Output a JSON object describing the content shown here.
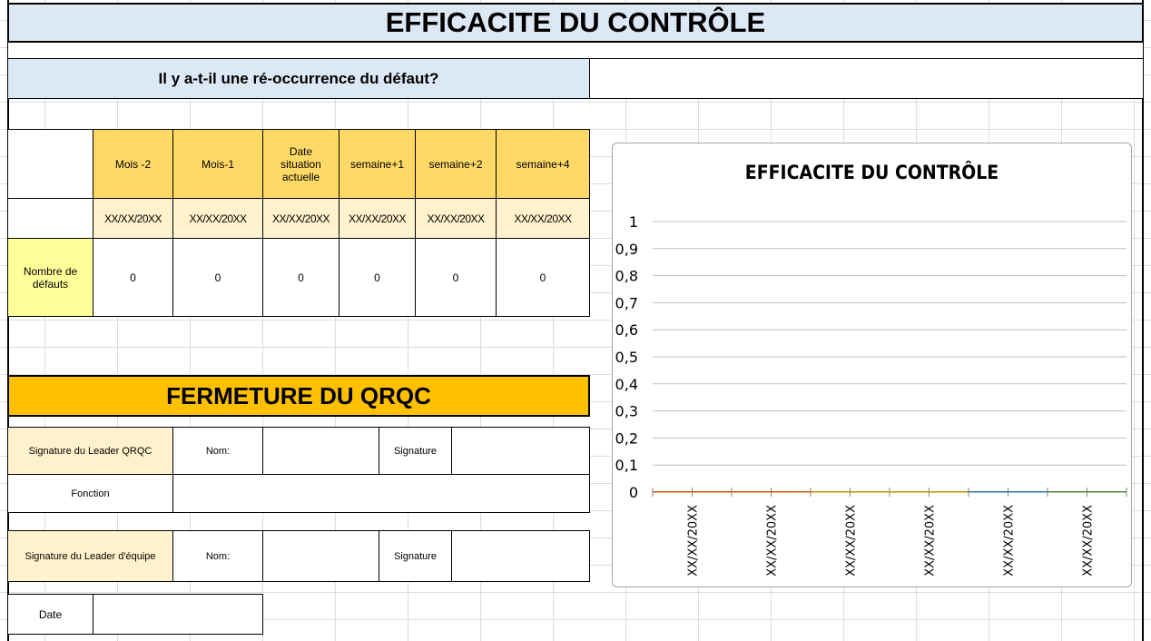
{
  "title": "EFFICACITE DU CONTRÔLE",
  "question": "Il y a-t-il une ré-occurrence du défaut?",
  "question_answer": "",
  "table": {
    "headers": [
      "Mois -2",
      "Mois-1",
      "Date situation actuelle",
      "semaine+1",
      "semaine+2",
      "semaine+4"
    ],
    "dates": [
      "XX/XX/20XX",
      "XX/XX/20XX",
      "XX/XX/20XX",
      "XX/XX/20XX",
      "XX/XX/20XX",
      "XX/XX/20XX"
    ],
    "row_label": "Nombre de défauts",
    "values": [
      "0",
      "0",
      "0",
      "0",
      "0",
      "0"
    ]
  },
  "closure": {
    "title": "FERMETURE DU QRQC",
    "leader_qrqc": "Signature du Leader QRQC",
    "nom": "Nom:",
    "signature": "Signature",
    "fonction": "Fonction",
    "leader_equipe": "Signature du Leader d'équipe",
    "date": "Date"
  },
  "chart_data": {
    "type": "bar",
    "title": "EFFICACITE DU CONTRÔLE",
    "categories": [
      "XX/XX/20XX",
      "XX/XX/20XX",
      "XX/XX/20XX",
      "XX/XX/20XX",
      "XX/XX/20XX",
      "XX/XX/20XX"
    ],
    "values": [
      0,
      0,
      0,
      0,
      0,
      0
    ],
    "yticks": [
      "0",
      "0,1",
      "0,2",
      "0,3",
      "0,4",
      "0,5",
      "0,6",
      "0,7",
      "0,8",
      "0,9",
      "1"
    ],
    "ylim": [
      0,
      1
    ],
    "grid": true,
    "colors": [
      "#c55a11",
      "#c55a11",
      "#bf9000",
      "#bf9000",
      "#2e75b6",
      "#548235"
    ]
  },
  "colors": {
    "title_bg": "#dde8f5",
    "header": "#ffd966",
    "date_row": "#fff2cc",
    "label": "#ffff99",
    "closure": "#ffc000"
  }
}
